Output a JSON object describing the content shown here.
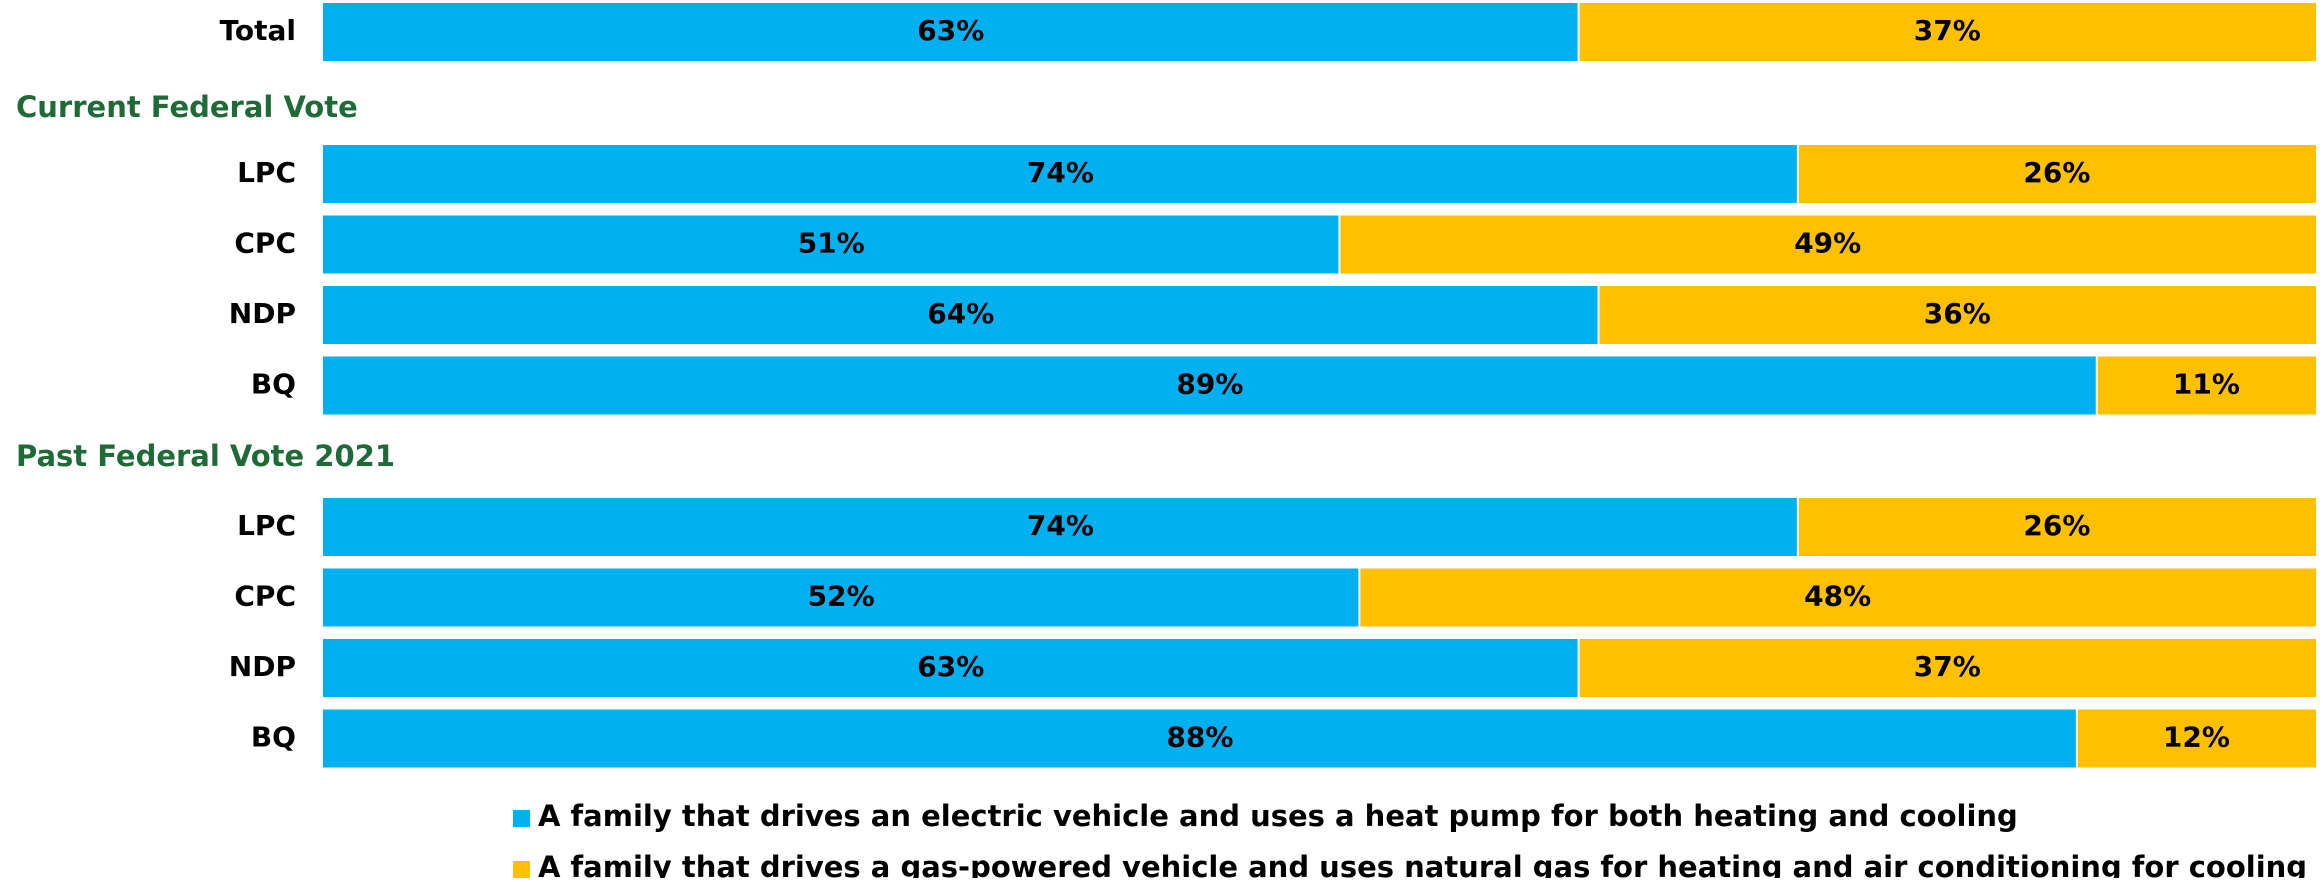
{
  "chart_data": {
    "type": "bar",
    "orientation": "horizontal",
    "stacked": true,
    "percent_stacked": true,
    "grid": false,
    "legend_position": "bottom",
    "value_format": "percent",
    "xlim": [
      0,
      100
    ],
    "groups": [
      {
        "heading": "",
        "categories": [
          "Total"
        ],
        "series_values": [
          [
            63
          ],
          [
            37
          ]
        ]
      },
      {
        "heading": "Current Federal Vote",
        "categories": [
          "LPC",
          "CPC",
          "NDP",
          "BQ"
        ],
        "series_values": [
          [
            74,
            51,
            64,
            89
          ],
          [
            26,
            49,
            36,
            11
          ]
        ]
      },
      {
        "heading": "Past Federal Vote 2021",
        "categories": [
          "LPC",
          "CPC",
          "NDP",
          "BQ"
        ],
        "series_values": [
          [
            74,
            52,
            63,
            88
          ],
          [
            26,
            48,
            37,
            12
          ]
        ]
      }
    ],
    "series": [
      {
        "name": "A family that drives an electric vehicle and uses a heat pump for both heating and cooling",
        "color": "#00B0F0"
      },
      {
        "name": "A family that drives a gas-powered vehicle and uses natural gas for heating and air conditioning for cooling",
        "color": "#FFC000"
      }
    ],
    "heading_color": "#1E6B37",
    "label_color": "#000000"
  }
}
